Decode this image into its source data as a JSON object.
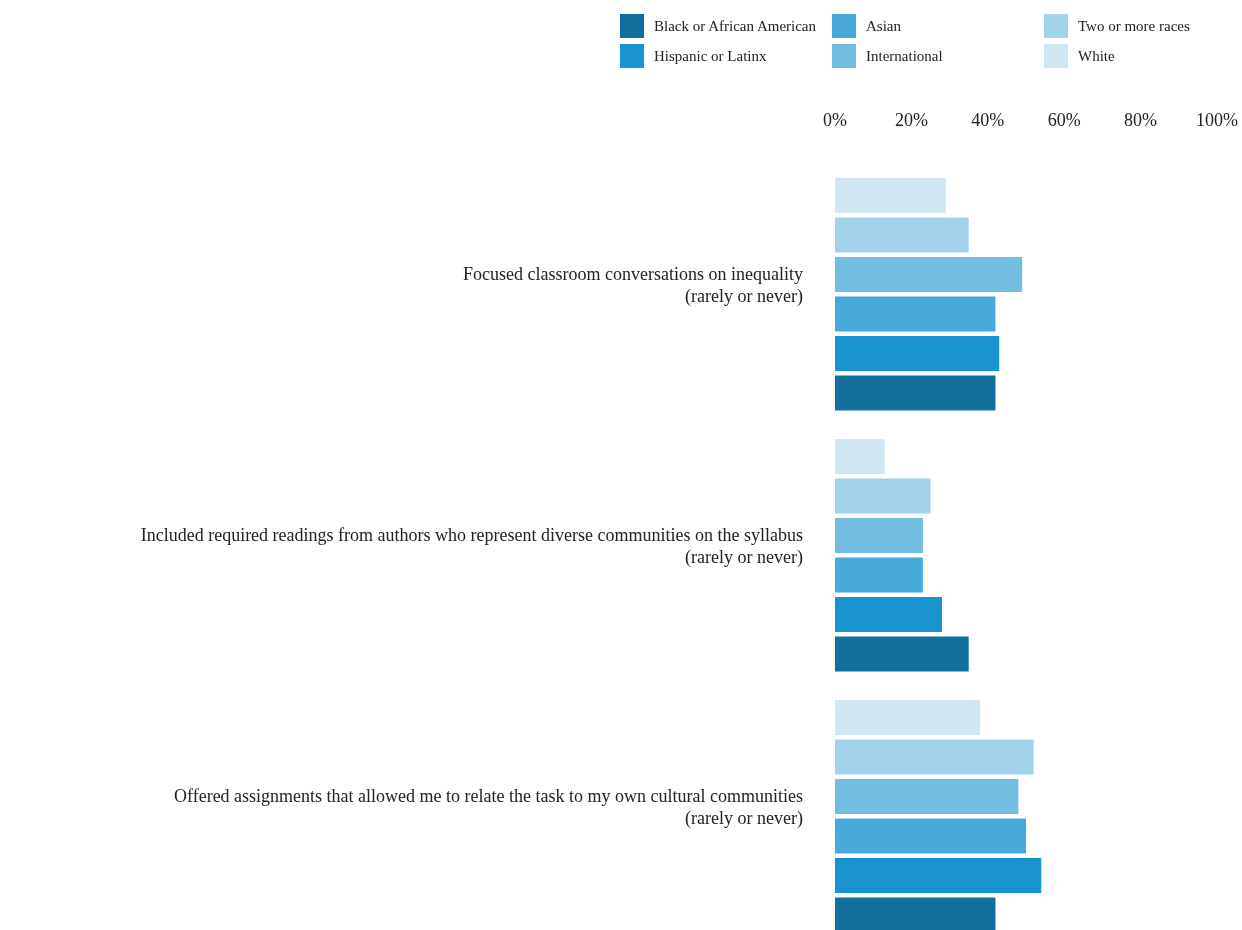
{
  "chart_data": {
    "type": "bar",
    "orientation": "horizontal",
    "categories": [
      "Focused classroom conversations on inequality\n(rarely or never)",
      "Included required readings from authors who represent diverse communities on the syllabus\n(rarely or never)",
      "Offered assignments that allowed me to relate the task to my own cultural communities\n(rarely or never)"
    ],
    "series": [
      {
        "name": "Black or African American",
        "color": "#126f9b",
        "values": [
          42,
          35,
          42
        ]
      },
      {
        "name": "Hispanic or Latinx",
        "color": "#1a94d0",
        "values": [
          43,
          28,
          54
        ]
      },
      {
        "name": "Asian",
        "color": "#46a9da",
        "values": [
          42,
          23,
          50
        ]
      },
      {
        "name": "International",
        "color": "#73bde0",
        "values": [
          49,
          23,
          48
        ]
      },
      {
        "name": "Two or more races",
        "color": "#a3d3eb",
        "values": [
          35,
          25,
          52
        ]
      },
      {
        "name": "White",
        "color": "#d0e7f3",
        "values": [
          29,
          13,
          38
        ]
      }
    ],
    "xlim": [
      0,
      100
    ],
    "xticks": [
      {
        "value": 0,
        "label": "0%"
      },
      {
        "value": 20,
        "label": "20%"
      },
      {
        "value": 40,
        "label": "40%"
      },
      {
        "value": 60,
        "label": "60%"
      },
      {
        "value": 80,
        "label": "80%"
      },
      {
        "value": 100,
        "label": "100%"
      }
    ],
    "grid": false,
    "legend": "top"
  }
}
